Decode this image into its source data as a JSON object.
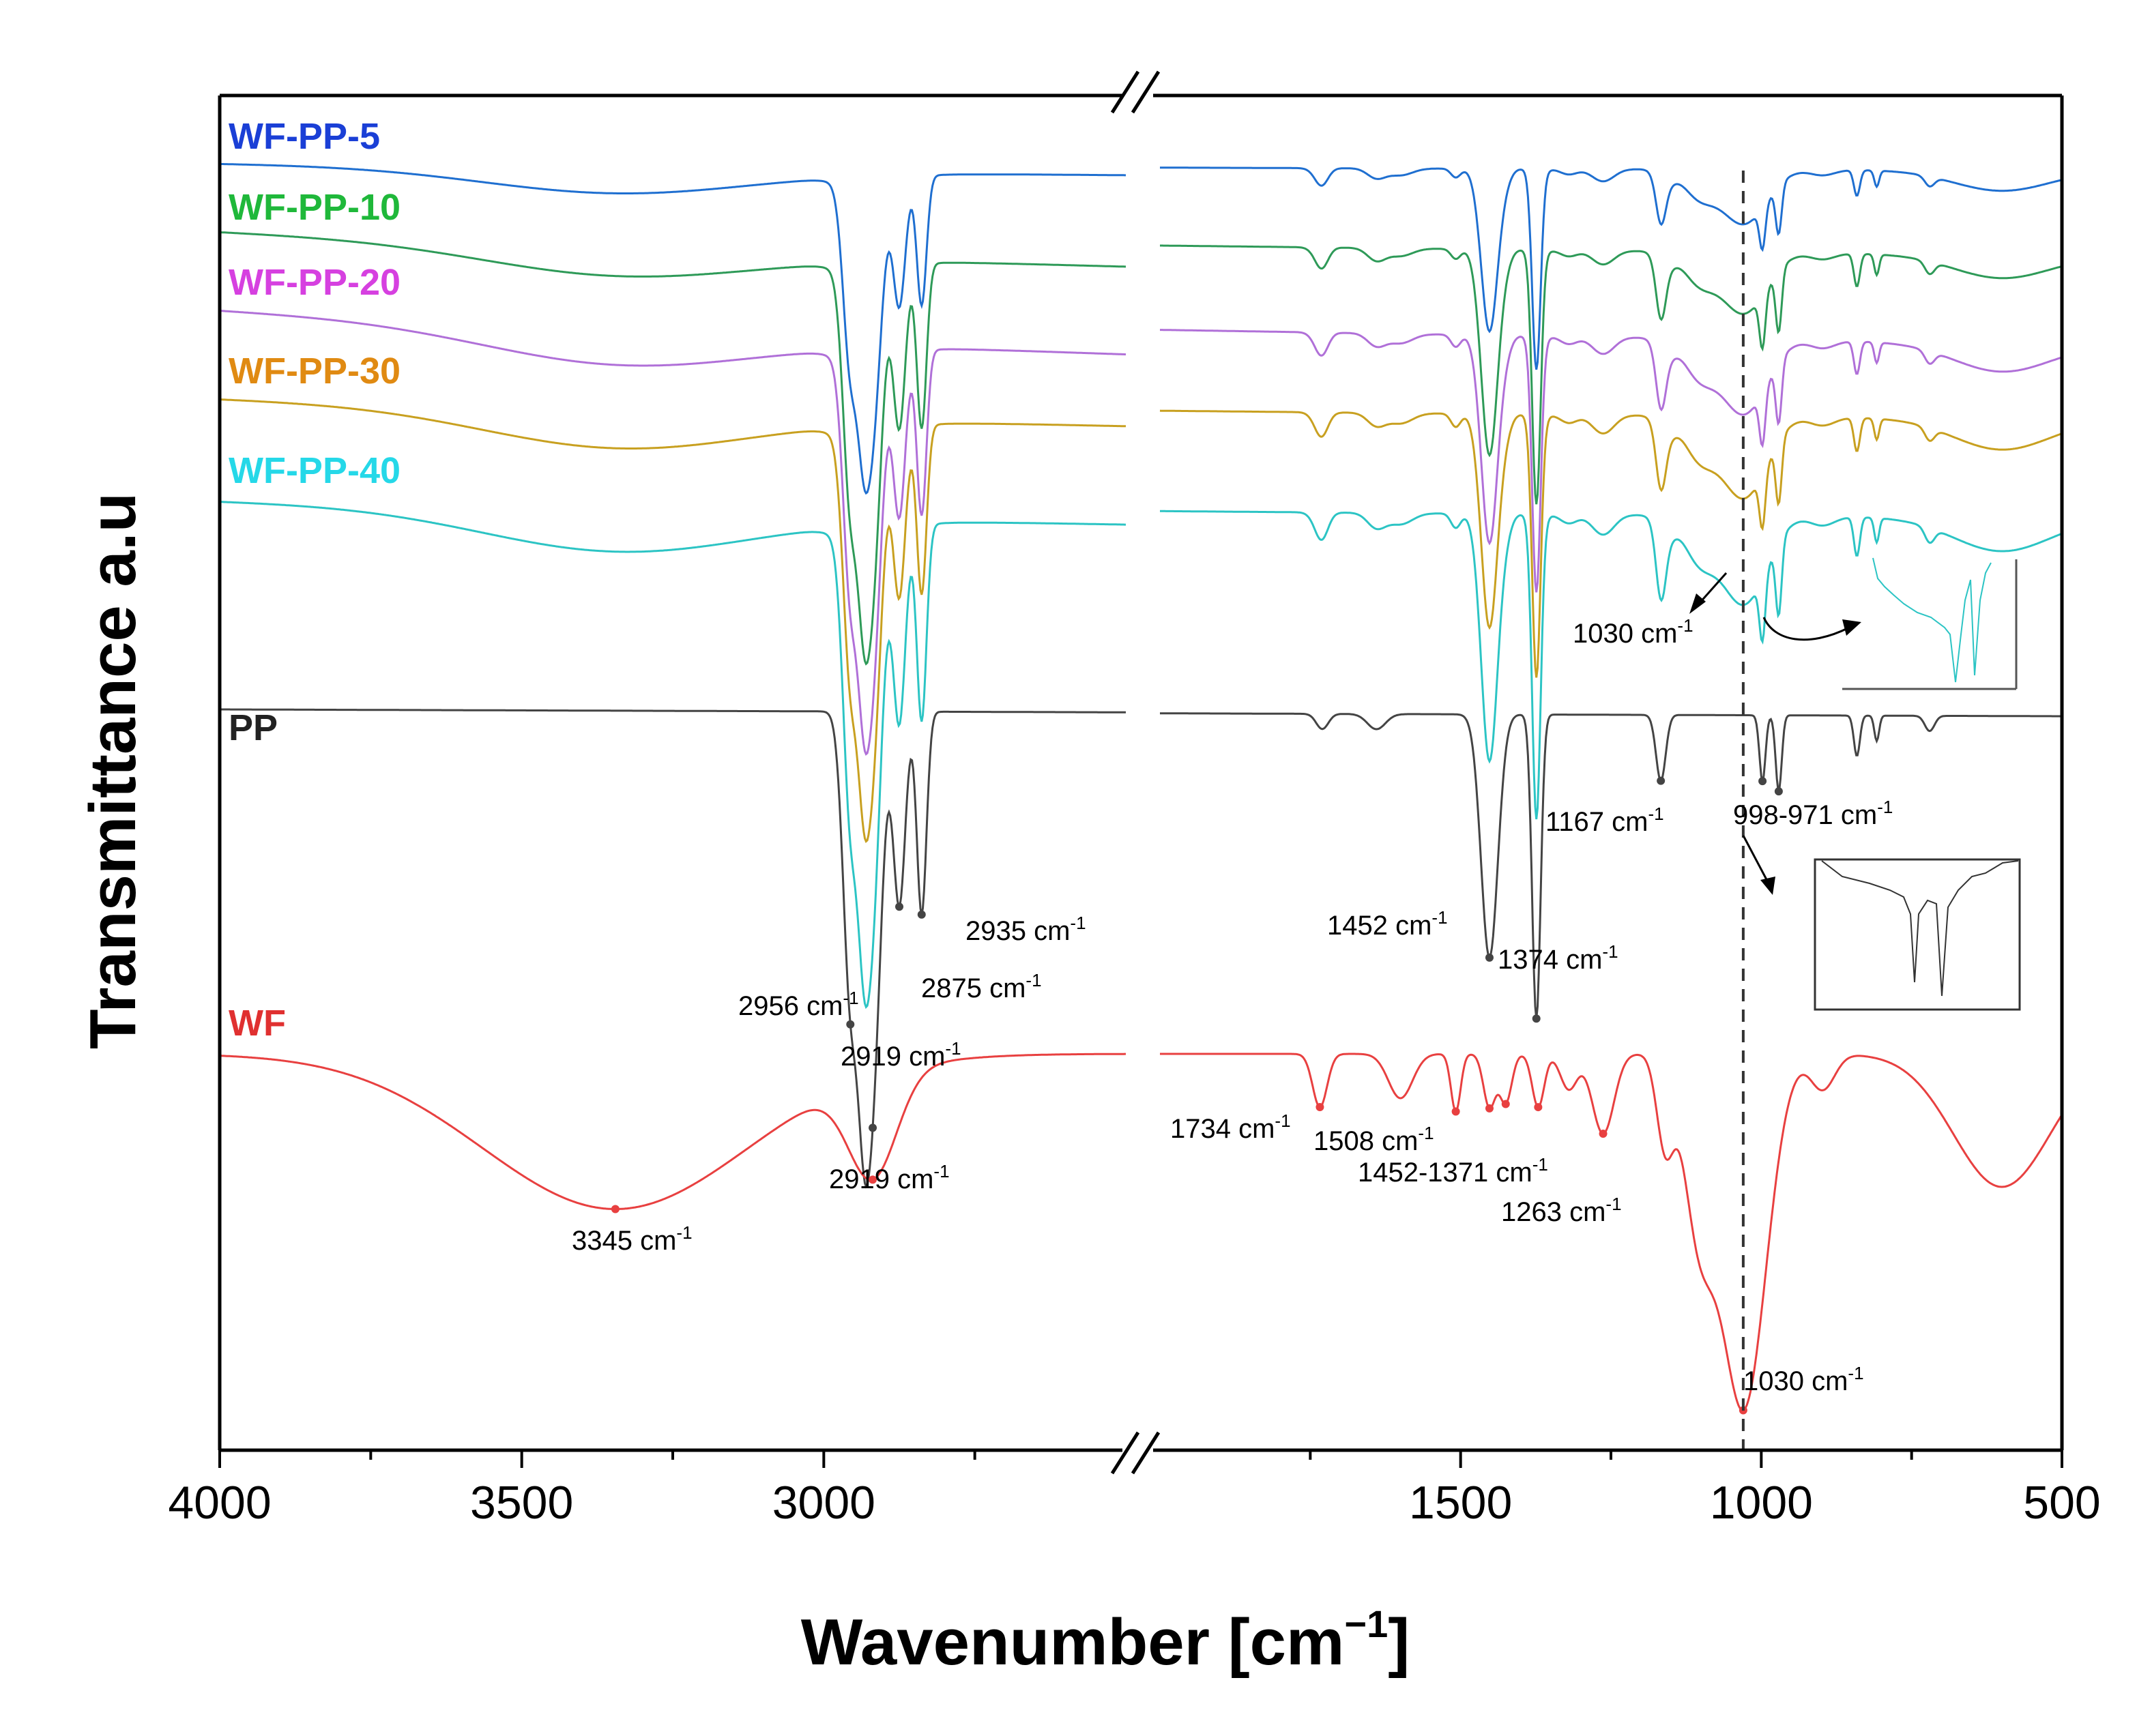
{
  "chart_data": {
    "type": "line",
    "title": "",
    "xlabel": "Wavenumber [cm",
    "xlabel_sup": "−1",
    "xlabel_end": "]",
    "ylabel": "Transmittance a.u",
    "x_axis": {
      "reversed": true,
      "segments": [
        {
          "range": [
            4000,
            2500
          ],
          "ticks": [
            4000,
            3500,
            3000
          ]
        },
        {
          "range": [
            2000,
            500
          ],
          "ticks": [
            1500,
            1000,
            500
          ]
        }
      ],
      "tick_labels": [
        "4000",
        "3500",
        "3000",
        "1500",
        "1000",
        "500"
      ],
      "axis_break": true
    },
    "grid": false,
    "legend": [
      {
        "name": "WF-PP-5",
        "color": "#1a3fd6"
      },
      {
        "name": "WF-PP-10",
        "color": "#1fb83a"
      },
      {
        "name": "WF-PP-20",
        "color": "#d640e0"
      },
      {
        "name": "WF-PP-30",
        "color": "#e08a12"
      },
      {
        "name": "WF-PP-40",
        "color": "#25d8e8"
      },
      {
        "name": "PP",
        "color": "#222222"
      },
      {
        "name": "WF",
        "color": "#e03030"
      }
    ],
    "series": [
      {
        "name": "WF-PP-5",
        "color": "#1f6fd0"
      },
      {
        "name": "WF-PP-10",
        "color": "#2e9a58"
      },
      {
        "name": "WF-PP-20",
        "color": "#b070d8"
      },
      {
        "name": "WF-PP-30",
        "color": "#c8a020"
      },
      {
        "name": "WF-PP-40",
        "color": "#2cc4c4"
      },
      {
        "name": "PP",
        "color": "#444444"
      },
      {
        "name": "WF",
        "color": "#e84040"
      }
    ],
    "reference_line": {
      "x": 1030,
      "style": "dashed"
    },
    "annotations": [
      {
        "text": "2956 cm",
        "sup": "-1",
        "x": 2956
      },
      {
        "text": "2935 cm",
        "sup": "-1",
        "x": 2935
      },
      {
        "text": "2875 cm",
        "sup": "-1",
        "x": 2875
      },
      {
        "text": "2919 cm",
        "sup": "-1",
        "x": 2919
      },
      {
        "text": "1452 cm",
        "sup": "-1",
        "x": 1452
      },
      {
        "text": "1374 cm",
        "sup": "-1",
        "x": 1374
      },
      {
        "text": "1167 cm",
        "sup": "-1",
        "x": 1167
      },
      {
        "text": "998-971 cm",
        "sup": "-1",
        "x": 985
      },
      {
        "text": "1030 cm",
        "sup": "-1",
        "x": 1030
      },
      {
        "text": "3345 cm",
        "sup": "-1",
        "x": 3345
      },
      {
        "text": "2919 cm",
        "sup": "-1",
        "x": 2919
      },
      {
        "text": "1734 cm",
        "sup": "-1",
        "x": 1734
      },
      {
        "text": "1508 cm",
        "sup": "-1",
        "x": 1508
      },
      {
        "text": "1452-1371 cm",
        "sup": "-1",
        "x": 1410
      },
      {
        "text": "1263 cm",
        "sup": "-1",
        "x": 1263
      },
      {
        "text": "1030 cm",
        "sup": "-1",
        "x": 1030
      }
    ]
  }
}
